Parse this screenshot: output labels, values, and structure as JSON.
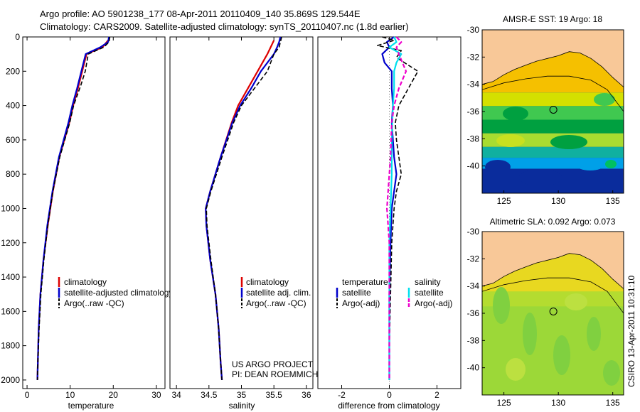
{
  "header": {
    "line1": "Argo profile: AO 5901238_177 08-Apr-2011 20110409_140 35.869S 129.544E",
    "line2": "Climatology: CARS2009. Satellite-adjusted climatology: synTS_20110407.nc (1.8d earlier)"
  },
  "colors": {
    "climatology": "#dd0000",
    "satellite": "#0000cc",
    "argo": "#000000",
    "sat_salinity": "#00e0ee",
    "argo_salinity": "#ee00cc",
    "land": "#f8c898"
  },
  "depth_axis": {
    "ylim": [
      0,
      2050
    ],
    "ticks": [
      "0",
      "200",
      "400",
      "600",
      "800",
      "1000",
      "1200",
      "1400",
      "1600",
      "1800",
      "2000"
    ]
  },
  "chart_data": [
    {
      "id": "temperature",
      "type": "line",
      "xlabel": "temperature",
      "xlim": [
        -1,
        32
      ],
      "xticks": [
        "0",
        "10",
        "20",
        "30"
      ],
      "legend": [
        "climatology",
        "satellite-adjusted climatology",
        "Argo(..raw -QC)"
      ],
      "series": [
        {
          "name": "climatology",
          "style": "climatology",
          "depth": [
            20,
            60,
            100,
            200,
            300,
            400,
            500,
            700,
            900,
            1100,
            1300,
            1500,
            1700,
            1900,
            2000
          ],
          "values": [
            18.8,
            17.5,
            13.8,
            12.8,
            11.8,
            10.7,
            9.8,
            7.5,
            6.0,
            4.8,
            3.8,
            3.1,
            2.7,
            2.5,
            2.4
          ]
        },
        {
          "name": "satellite-adjusted climatology",
          "style": "satellite",
          "depth": [
            0,
            30,
            60,
            100,
            200,
            300,
            400,
            500,
            700,
            900,
            1100,
            1300,
            1500,
            1700,
            1900,
            2000
          ],
          "values": [
            19.0,
            18.8,
            17.0,
            13.6,
            12.6,
            11.6,
            10.5,
            9.6,
            7.4,
            5.9,
            4.7,
            3.8,
            3.1,
            2.7,
            2.5,
            2.4
          ]
        },
        {
          "name": "Argo(..raw -QC)",
          "style": "argo",
          "depth": [
            0,
            30,
            60,
            100,
            200,
            280,
            400,
            500,
            700,
            900,
            1100,
            1300,
            1500,
            1700,
            1900,
            2000
          ],
          "values": [
            19.2,
            19.0,
            17.8,
            14.2,
            13.5,
            12.5,
            10.8,
            9.9,
            7.6,
            6.0,
            4.8,
            3.9,
            3.2,
            2.8,
            2.5,
            2.4
          ]
        }
      ]
    },
    {
      "id": "salinity",
      "type": "line",
      "xlabel": "salinity",
      "xlim": [
        33.9,
        36.1
      ],
      "xticks": [
        "34",
        "34.5",
        "35",
        "35.5",
        "36"
      ],
      "legend": [
        "climatology",
        "satellite adj. clim.",
        "Argo(..raw -QC)"
      ],
      "series": [
        {
          "name": "climatology",
          "style": "climatology",
          "depth": [
            20,
            60,
            100,
            200,
            300,
            400,
            500,
            700,
            900,
            1000,
            1100,
            1300,
            1500,
            1700,
            1900,
            2000
          ],
          "values": [
            35.5,
            35.45,
            35.4,
            35.25,
            35.1,
            34.95,
            34.85,
            34.68,
            34.52,
            34.45,
            34.46,
            34.52,
            34.6,
            34.65,
            34.68,
            34.7
          ]
        },
        {
          "name": "satellite adj. clim.",
          "style": "satellite",
          "depth": [
            0,
            30,
            60,
            100,
            200,
            300,
            400,
            500,
            700,
            900,
            1000,
            1100,
            1300,
            1500,
            1700,
            1900,
            2000
          ],
          "values": [
            35.6,
            35.58,
            35.55,
            35.5,
            35.3,
            35.15,
            34.98,
            34.86,
            34.68,
            34.52,
            34.45,
            34.46,
            34.52,
            34.6,
            34.65,
            34.68,
            34.7
          ]
        },
        {
          "name": "Argo(..raw -QC)",
          "style": "argo",
          "depth": [
            0,
            30,
            60,
            100,
            200,
            300,
            400,
            500,
            700,
            900,
            1000,
            1100,
            1300,
            1500,
            1700,
            1900,
            2000
          ],
          "values": [
            35.62,
            35.6,
            35.58,
            35.5,
            35.4,
            35.2,
            35.0,
            34.88,
            34.7,
            34.53,
            34.46,
            34.47,
            34.53,
            34.6,
            34.65,
            34.68,
            34.7
          ]
        }
      ],
      "annotations": [
        "US ARGO PROJECT",
        "PI: DEAN ROEMMICH"
      ]
    },
    {
      "id": "difference",
      "type": "line",
      "xlabel": "difference from climatology",
      "xlim": [
        -3,
        3
      ],
      "xticks": [
        "-2",
        "0",
        "2"
      ],
      "legend_headers": [
        "temperature",
        "salinity"
      ],
      "legend": [
        "satellite",
        "Argo(-adj)",
        "satellite",
        "Argo(-adj)"
      ],
      "series": [
        {
          "name": "temperature satellite",
          "style": "satellite",
          "depth": [
            0,
            30,
            60,
            100,
            150,
            200,
            300,
            400,
            500,
            700,
            800,
            900,
            1000,
            1200,
            1500,
            1800,
            2000
          ],
          "values": [
            0.2,
            -0.1,
            0.0,
            -0.3,
            -0.2,
            0.1,
            0.1,
            0.15,
            0.1,
            0.2,
            0.3,
            0.2,
            0.1,
            0.05,
            0.0,
            0.0,
            0.0
          ]
        },
        {
          "name": "temperature Argo(-adj)",
          "style": "argo",
          "depth": [
            0,
            20,
            50,
            80,
            120,
            200,
            300,
            400,
            500,
            600,
            700,
            800,
            900,
            1000,
            1200,
            1500,
            1800,
            2000
          ],
          "values": [
            -0.3,
            0.2,
            -0.5,
            0.5,
            0.3,
            1.2,
            0.8,
            0.4,
            0.25,
            0.3,
            0.4,
            0.5,
            0.3,
            0.2,
            0.1,
            0.05,
            0.0,
            0.0
          ]
        },
        {
          "name": "salinity satellite",
          "style": "sat_salinity",
          "depth": [
            0,
            30,
            60,
            100,
            150,
            200,
            300,
            400,
            600,
            800,
            1000,
            1200,
            1500,
            1800,
            2000
          ],
          "values": [
            0.2,
            0.3,
            0.0,
            0.5,
            0.3,
            0.2,
            0.2,
            0.15,
            0.1,
            0.1,
            0.05,
            0.0,
            0.0,
            0.0,
            0.0
          ]
        },
        {
          "name": "salinity Argo(-adj)",
          "style": "argo_salinity",
          "depth": [
            0,
            30,
            60,
            100,
            200,
            300,
            400,
            500,
            700,
            900,
            1000,
            1200,
            1500,
            1800,
            2000
          ],
          "values": [
            0.3,
            0.5,
            0.3,
            0.4,
            0.7,
            0.4,
            0.2,
            0.1,
            0.05,
            -0.05,
            -0.1,
            0.0,
            0.0,
            0.0,
            0.0
          ]
        }
      ]
    },
    {
      "id": "sst_map",
      "type": "heatmap",
      "title": "AMSR-E SST: 19 Argo: 18",
      "xlim": [
        123,
        136
      ],
      "ylim": [
        -42,
        -30
      ],
      "xticks": [
        "125",
        "130",
        "135"
      ],
      "yticks": [
        "-30",
        "-32",
        "-34",
        "-36",
        "-38",
        "-40"
      ],
      "float_marker": [
        129.544,
        -35.869
      ],
      "bands": [
        {
          "lat": [
            -33.5,
            -34.6
          ],
          "color": "#f5c000"
        },
        {
          "lat": [
            -34.6,
            -35.6
          ],
          "color": "#d4e000"
        },
        {
          "lat": [
            -35.6,
            -36.6
          ],
          "color": "#40c850"
        },
        {
          "lat": [
            -36.6,
            -37.6
          ],
          "color": "#00a040"
        },
        {
          "lat": [
            -37.6,
            -38.6
          ],
          "color": "#a8dc30"
        },
        {
          "lat": [
            -38.6,
            -39.4
          ],
          "color": "#10b0a0"
        },
        {
          "lat": [
            -39.4,
            -40.2
          ],
          "color": "#00a0e8"
        },
        {
          "lat": [
            -40.2,
            -42
          ],
          "color": "#0a2c9c"
        }
      ]
    },
    {
      "id": "sla_map",
      "type": "heatmap",
      "title": "Altimetric SLA: 0.092 Argo: 0.073",
      "xlim": [
        123,
        136
      ],
      "ylim": [
        -42,
        -30
      ],
      "xticks": [
        "125",
        "130",
        "135"
      ],
      "yticks": [
        "-30",
        "-32",
        "-34",
        "-36",
        "-38",
        "-40"
      ],
      "float_marker": [
        129.544,
        -35.869
      ],
      "bands": [
        {
          "lat": [
            -33.5,
            -34.4
          ],
          "color": "#e8d820"
        },
        {
          "lat": [
            -34.4,
            -35.5
          ],
          "color": "#b4dc30"
        },
        {
          "lat": [
            -35.5,
            -42
          ],
          "color": "#9cd838"
        }
      ]
    }
  ],
  "footer": {
    "stamp": "CSIRO 13-Apr-2011 10:31:10"
  }
}
